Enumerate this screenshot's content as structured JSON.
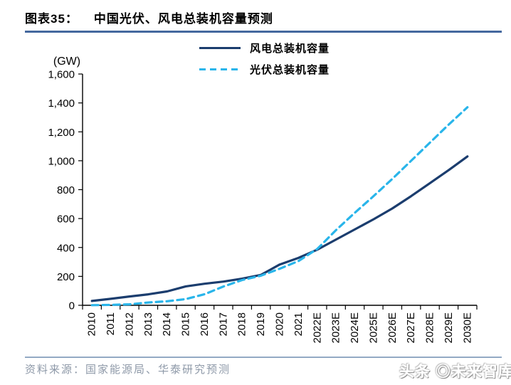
{
  "header": {
    "title_prefix": "图表35：",
    "title_text": "中国光伏、风电总装机容量预测",
    "rule_color": "#44689e"
  },
  "chart_data": {
    "type": "line",
    "title": "中国光伏、风电总装机容量预测",
    "unit_label": "(GW)",
    "categories": [
      "2010",
      "2011",
      "2012",
      "2013",
      "2014",
      "2015",
      "2016",
      "2017",
      "2018",
      "2019",
      "2020",
      "2021",
      "2022E",
      "2023E",
      "2024E",
      "2025E",
      "2026E",
      "2027E",
      "2028E",
      "2029E",
      "2030E"
    ],
    "series": [
      {
        "name": "风电总装机容量",
        "style": "solid",
        "color": "#1b3d6e",
        "values": [
          30,
          45,
          61,
          76,
          96,
          131,
          149,
          164,
          184,
          210,
          282,
          328,
          385,
          455,
          525,
          595,
          670,
          755,
          845,
          935,
          1030
        ]
      },
      {
        "name": "光伏总装机容量",
        "style": "dashed",
        "color": "#29b5ea",
        "values": [
          1,
          3,
          7,
          19,
          28,
          43,
          77,
          130,
          175,
          205,
          253,
          306,
          390,
          520,
          640,
          755,
          875,
          1000,
          1125,
          1250,
          1370
        ]
      }
    ],
    "ylim": [
      0,
      1600
    ],
    "y_tick_step": 200,
    "y_tick_labels": [
      "0",
      "200",
      "400",
      "600",
      "800",
      "1,000",
      "1,200",
      "1,400",
      "1,600"
    ],
    "legend_position": "top-center",
    "grid": false
  },
  "footer": {
    "source": "资料来源：国家能源局、华泰研究预测",
    "rule_color": "#93a9c4"
  },
  "watermark": {
    "text": "头条 ◎未来智库"
  }
}
